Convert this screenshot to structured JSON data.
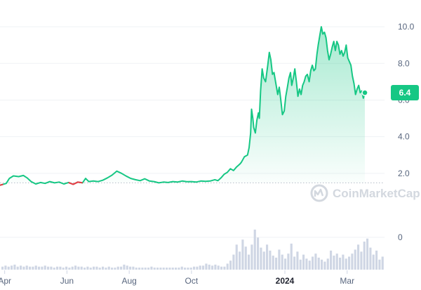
{
  "chart_data": {
    "type": "line",
    "y_axis_side": "right",
    "ylim": [
      0,
      11
    ],
    "y_ticks": [
      {
        "label": "10.0",
        "value": 10
      },
      {
        "label": "8.0",
        "value": 8
      },
      {
        "label": "6.0",
        "value": 6
      },
      {
        "label": "4.0",
        "value": 4
      },
      {
        "label": "2.0",
        "value": 2
      }
    ],
    "x_ticks": [
      {
        "label": "Apr",
        "value": 0,
        "bold": false
      },
      {
        "label": "Jun",
        "value": 2,
        "bold": false
      },
      {
        "label": "Aug",
        "value": 4,
        "bold": false
      },
      {
        "label": "Oct",
        "value": 6,
        "bold": false
      },
      {
        "label": "2024",
        "value": 9,
        "bold": true
      },
      {
        "label": "Mar",
        "value": 11,
        "bold": false
      }
    ],
    "xlim": [
      -0.15,
      12.2
    ],
    "reference_line": 1.48,
    "current_value": {
      "label": "6.4",
      "value": 6.4
    },
    "colors": {
      "up": "#16c784",
      "down": "#ea3943",
      "volume": "#cfd6e4"
    },
    "series": [
      {
        "values": [
          [
            -0.15,
            1.35
          ],
          [
            0.05,
            1.45
          ],
          [
            0.15,
            1.72
          ],
          [
            0.28,
            1.86
          ],
          [
            0.45,
            1.82
          ],
          [
            0.6,
            1.88
          ],
          [
            0.72,
            1.75
          ],
          [
            0.85,
            1.55
          ],
          [
            1.0,
            1.42
          ],
          [
            1.15,
            1.5
          ],
          [
            1.3,
            1.45
          ],
          [
            1.45,
            1.55
          ],
          [
            1.6,
            1.48
          ],
          [
            1.75,
            1.52
          ],
          [
            1.9,
            1.42
          ],
          [
            2.05,
            1.5
          ],
          [
            2.2,
            1.4
          ],
          [
            2.35,
            1.52
          ],
          [
            2.5,
            1.48
          ],
          [
            2.6,
            1.72
          ],
          [
            2.7,
            1.55
          ],
          [
            2.85,
            1.58
          ],
          [
            3.0,
            1.55
          ],
          [
            3.15,
            1.62
          ],
          [
            3.3,
            1.75
          ],
          [
            3.45,
            1.9
          ],
          [
            3.6,
            2.12
          ],
          [
            3.75,
            2.0
          ],
          [
            3.9,
            1.85
          ],
          [
            4.05,
            1.72
          ],
          [
            4.2,
            1.65
          ],
          [
            4.35,
            1.6
          ],
          [
            4.5,
            1.7
          ],
          [
            4.65,
            1.58
          ],
          [
            4.8,
            1.55
          ],
          [
            4.95,
            1.48
          ],
          [
            5.1,
            1.52
          ],
          [
            5.25,
            1.5
          ],
          [
            5.4,
            1.55
          ],
          [
            5.55,
            1.52
          ],
          [
            5.7,
            1.58
          ],
          [
            5.85,
            1.54
          ],
          [
            6.0,
            1.55
          ],
          [
            6.15,
            1.52
          ],
          [
            6.3,
            1.58
          ],
          [
            6.45,
            1.56
          ],
          [
            6.6,
            1.58
          ],
          [
            6.75,
            1.65
          ],
          [
            6.85,
            1.6
          ],
          [
            6.95,
            1.75
          ],
          [
            7.05,
            1.95
          ],
          [
            7.15,
            2.05
          ],
          [
            7.25,
            2.25
          ],
          [
            7.35,
            2.15
          ],
          [
            7.45,
            2.35
          ],
          [
            7.55,
            2.5
          ],
          [
            7.6,
            2.6
          ],
          [
            7.7,
            2.9
          ],
          [
            7.8,
            3.0
          ],
          [
            7.85,
            3.4
          ],
          [
            7.9,
            4.2
          ],
          [
            7.93,
            5.5
          ],
          [
            7.97,
            5.0
          ],
          [
            8.0,
            4.5
          ],
          [
            8.05,
            4.2
          ],
          [
            8.1,
            4.9
          ],
          [
            8.15,
            5.3
          ],
          [
            8.18,
            5.0
          ],
          [
            8.22,
            6.5
          ],
          [
            8.27,
            7.7
          ],
          [
            8.32,
            7.2
          ],
          [
            8.38,
            7.0
          ],
          [
            8.45,
            7.9
          ],
          [
            8.5,
            8.6
          ],
          [
            8.55,
            8.2
          ],
          [
            8.6,
            7.4
          ],
          [
            8.65,
            7.5
          ],
          [
            8.72,
            6.8
          ],
          [
            8.77,
            6.3
          ],
          [
            8.82,
            6.7
          ],
          [
            8.87,
            6.0
          ],
          [
            8.92,
            5.2
          ],
          [
            8.98,
            5.4
          ],
          [
            9.03,
            6.2
          ],
          [
            9.08,
            6.7
          ],
          [
            9.13,
            7.2
          ],
          [
            9.18,
            7.5
          ],
          [
            9.22,
            6.8
          ],
          [
            9.27,
            7.2
          ],
          [
            9.32,
            7.7
          ],
          [
            9.37,
            7.0
          ],
          [
            9.42,
            6.2
          ],
          [
            9.47,
            6.6
          ],
          [
            9.52,
            6.3
          ],
          [
            9.57,
            6.8
          ],
          [
            9.62,
            7.0
          ],
          [
            9.67,
            7.3
          ],
          [
            9.72,
            7.4
          ],
          [
            9.78,
            7.0
          ],
          [
            9.83,
            7.6
          ],
          [
            9.88,
            7.9
          ],
          [
            9.93,
            7.6
          ],
          [
            9.98,
            7.7
          ],
          [
            10.03,
            8.5
          ],
          [
            10.07,
            9.0
          ],
          [
            10.12,
            9.5
          ],
          [
            10.17,
            10.0
          ],
          [
            10.22,
            9.6
          ],
          [
            10.27,
            9.7
          ],
          [
            10.32,
            9.4
          ],
          [
            10.37,
            8.7
          ],
          [
            10.42,
            8.2
          ],
          [
            10.47,
            8.5
          ],
          [
            10.52,
            8.9
          ],
          [
            10.57,
            9.2
          ],
          [
            10.62,
            8.7
          ],
          [
            10.67,
            9.2
          ],
          [
            10.72,
            9.0
          ],
          [
            10.77,
            8.5
          ],
          [
            10.82,
            8.7
          ],
          [
            10.87,
            8.4
          ],
          [
            10.92,
            8.6
          ],
          [
            10.97,
            9.0
          ],
          [
            11.02,
            8.3
          ],
          [
            11.07,
            8.1
          ],
          [
            11.12,
            7.9
          ],
          [
            11.17,
            7.3
          ],
          [
            11.22,
            6.9
          ],
          [
            11.27,
            6.3
          ],
          [
            11.32,
            6.6
          ],
          [
            11.37,
            6.8
          ],
          [
            11.42,
            6.4
          ],
          [
            11.47,
            6.5
          ],
          [
            11.52,
            6.1
          ],
          [
            11.57,
            6.4
          ]
        ]
      }
    ],
    "down_segments": [
      [
        1.95,
        2.55
      ]
    ],
    "volume": [
      0.3,
      0.4,
      0.3,
      0.4,
      0.5,
      0.3,
      0.4,
      0.3,
      0.4,
      0.3,
      0.3,
      0.4,
      0.3,
      0.3,
      0.4,
      0.3,
      0.3,
      0.2,
      0.3,
      0.3,
      0.2,
      0.3,
      0.2,
      0.3,
      0.4,
      0.3,
      0.3,
      0.2,
      0.3,
      0.2,
      0.3,
      0.3,
      0.2,
      0.3,
      0.2,
      0.3,
      0.2,
      0.2,
      0.3,
      0.3,
      0.5,
      0.4,
      0.3,
      0.3,
      0.2,
      0.2,
      0.2,
      0.2,
      0.2,
      0.3,
      0.2,
      0.2,
      0.2,
      0.2,
      0.2,
      0.2,
      0.2,
      0.2,
      0.2,
      0.3,
      0.2,
      0.2,
      0.2,
      0.3,
      0.3,
      0.4,
      0.4,
      0.6,
      0.5,
      0.4,
      0.5,
      0.4,
      0.3,
      0.3,
      0.6,
      0.9,
      1.5,
      2.5,
      1.8,
      3.0,
      2.3,
      1.5,
      2.5,
      4.0,
      3.2,
      2.2,
      1.8,
      2.5,
      1.9,
      1.4,
      1.2,
      2.0,
      1.5,
      1.1,
      1.6,
      2.6,
      1.3,
      1.8,
      1.0,
      1.5,
      1.1,
      0.9,
      1.3,
      1.6,
      1.2,
      1.0,
      0.8,
      1.1,
      1.9,
      1.4,
      1.6,
      1.2,
      1.5,
      1.1,
      1.3,
      1.6,
      2.0,
      2.5,
      1.8,
      2.8,
      3.1,
      2.2,
      1.5,
      1.9,
      1.0,
      1.3
    ],
    "watermark": "CoinMarketCap"
  }
}
